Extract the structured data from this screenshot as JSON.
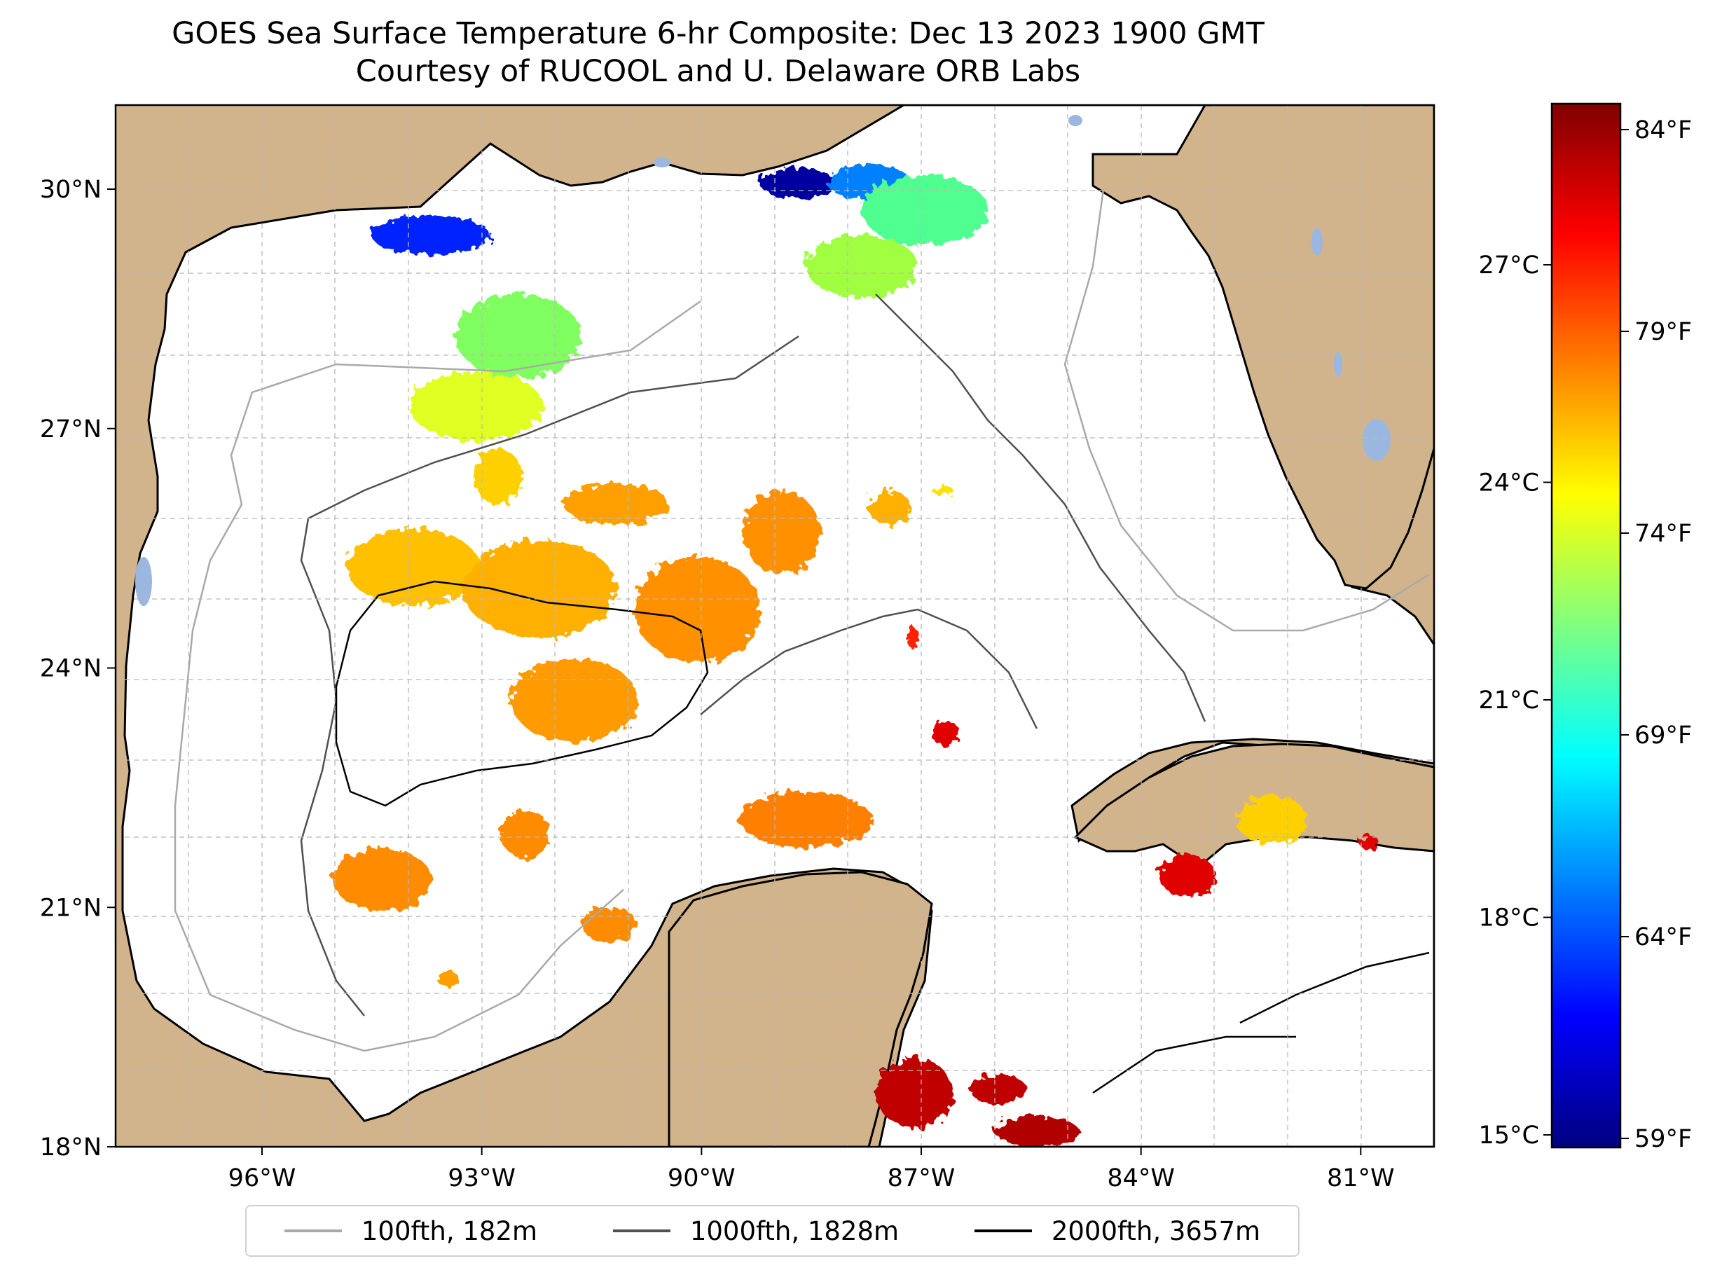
{
  "title": {
    "line1": "GOES Sea Surface Temperature 6-hr Composite: Dec 13 2023 1900 GMT",
    "line2": "Courtesy of RUCOOL and U. Delaware ORB Labs"
  },
  "map": {
    "region": "Gulf of Mexico",
    "extent": {
      "lon_min": -98,
      "lon_max": -80,
      "lat_min": 18,
      "lat_max": 31
    },
    "lat_ticks": [
      {
        "value": 30,
        "label": "30°N"
      },
      {
        "value": 27,
        "label": "27°N"
      },
      {
        "value": 24,
        "label": "24°N"
      },
      {
        "value": 21,
        "label": "21°N"
      },
      {
        "value": 18,
        "label": "18°N"
      }
    ],
    "lon_ticks": [
      {
        "value": -96,
        "label": "96°W"
      },
      {
        "value": -93,
        "label": "93°W"
      },
      {
        "value": -90,
        "label": "90°W"
      },
      {
        "value": -87,
        "label": "87°W"
      },
      {
        "value": -84,
        "label": "84°W"
      },
      {
        "value": -81,
        "label": "81°W"
      }
    ],
    "gridlines": true,
    "colors": {
      "land": "#d2b48c",
      "ocean": "#ffffff",
      "lakes": "#9bb7e0",
      "coastline": "#000000"
    }
  },
  "colorbar": {
    "colormap": "jet",
    "celsius_range": [
      15,
      29
    ],
    "celsius_ticks": [
      {
        "value": 27,
        "label": "27°C"
      },
      {
        "value": 24,
        "label": "24°C"
      },
      {
        "value": 21,
        "label": "21°C"
      },
      {
        "value": 18,
        "label": "18°C"
      },
      {
        "value": 15,
        "label": "15°C"
      }
    ],
    "fahrenheit_ticks": [
      {
        "value": 84,
        "label": "84°F"
      },
      {
        "value": 79,
        "label": "79°F"
      },
      {
        "value": 74,
        "label": "74°F"
      },
      {
        "value": 69,
        "label": "69°F"
      },
      {
        "value": 64,
        "label": "64°F"
      },
      {
        "value": 59,
        "label": "59°F"
      }
    ]
  },
  "legend": [
    {
      "label": "100fth, 182m",
      "color": "#a9a9a9"
    },
    {
      "label": "1000fth, 1828m",
      "color": "#505050"
    },
    {
      "label": "2000fth, 3657m",
      "color": "#000000"
    }
  ]
}
